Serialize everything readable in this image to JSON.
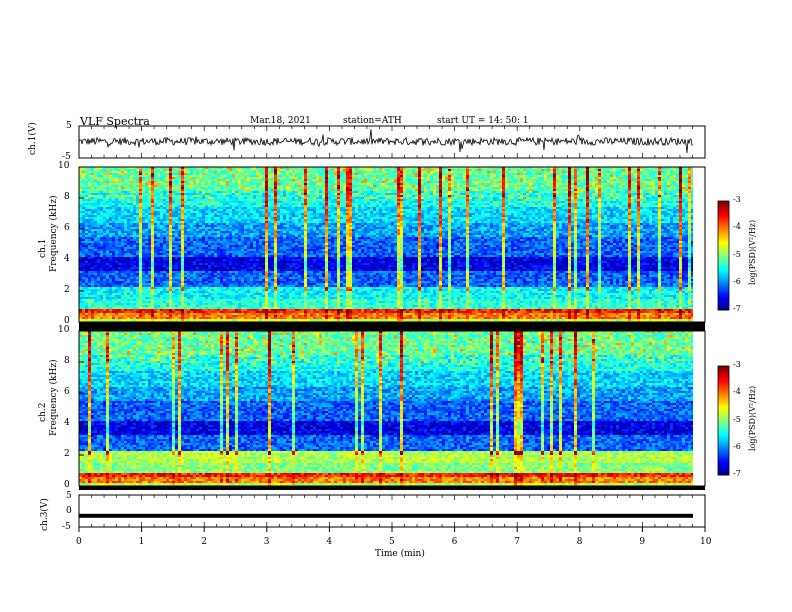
{
  "header": {
    "title": "VLF  Spectra",
    "date": "Mar.18, 2021",
    "station": "station=ATH",
    "start": "start  UT  =   14: 50: 1"
  },
  "chart_data": [
    {
      "type": "line",
      "panel": "ch1",
      "ylabel": "ch.1(V)",
      "ylim": [
        -5,
        5
      ],
      "y_ticks": [
        "5",
        "-5"
      ],
      "xlim": [
        0,
        10
      ],
      "description_values": {
        "baseline_V": 0.2,
        "noise_amplitude_V": 1.2
      }
    },
    {
      "type": "heatmap",
      "panel": "ch1 spectrogram",
      "ylabel_line1": "ch.1",
      "ylabel_line2": "Frequency  (kHz)",
      "ylim": [
        0,
        10
      ],
      "y_ticks": [
        "0",
        "2",
        "4",
        "6",
        "8",
        "10"
      ],
      "xlim": [
        0,
        9.8
      ],
      "colorbar": {
        "label": "log(PSD)(V²/Hz)",
        "ticks": [
          "-3",
          "-4",
          "-5",
          "-6",
          "-7"
        ],
        "range": [
          -7,
          -3
        ]
      }
    },
    {
      "type": "heatmap",
      "panel": "ch2 spectrogram",
      "ylabel_line1": "ch.2",
      "ylabel_line2": "Frequency  (kHz)",
      "ylim": [
        0,
        10
      ],
      "y_ticks": [
        "0",
        "2",
        "4",
        "6",
        "8",
        "10"
      ],
      "xlim": [
        0,
        9.8
      ],
      "colorbar": {
        "label": "log(PSD)(V²/Hz)",
        "ticks": [
          "-3",
          "-4",
          "-5",
          "-6",
          "-7"
        ],
        "range": [
          -7,
          -3
        ]
      }
    },
    {
      "type": "line",
      "panel": "ch3",
      "ylabel": "ch.3(V)",
      "ylim": [
        -5,
        5
      ],
      "y_ticks": [
        "5",
        "0",
        "-5"
      ],
      "xlim": [
        0,
        10
      ],
      "description_values": {
        "baseline_V": -1.5
      }
    }
  ],
  "xaxis": {
    "label": "Time  (min)",
    "ticks": [
      "0",
      "1",
      "2",
      "3",
      "4",
      "5",
      "6",
      "7",
      "8",
      "9",
      "10"
    ]
  }
}
